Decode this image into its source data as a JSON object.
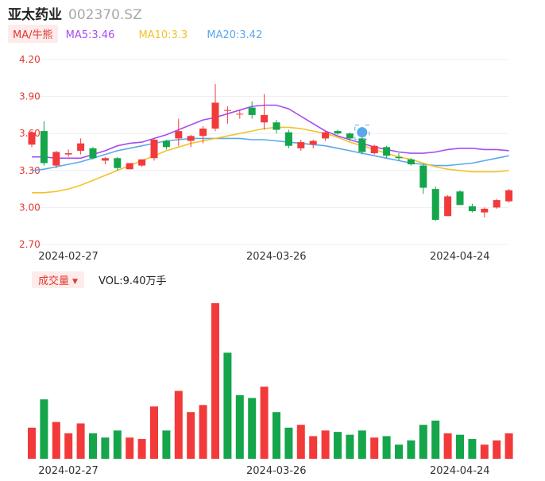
{
  "header": {
    "stock_name": "亚太药业",
    "stock_code": "002370.SZ",
    "ma_label": "MA/牛熊",
    "ma5": "MA5:3.46",
    "ma10": "MA10:3.3",
    "ma20": "MA20:3.42"
  },
  "volume_panel": {
    "label": "成交量",
    "vol_text": "VOL:9.40万手"
  },
  "colors": {
    "up": "#f23a3a",
    "down": "#15a54a",
    "ma5": "#a64bf2",
    "ma10": "#f2c32b",
    "ma20": "#5aa8ec",
    "grid": "#eeeeee",
    "tick": "#e4392f"
  },
  "chart_data": [
    {
      "type": "candlestick",
      "y_ticks": [
        "4.20",
        "3.90",
        "3.60",
        "3.30",
        "3.00",
        "2.70"
      ],
      "ylim": [
        2.7,
        4.2
      ],
      "x_tick_labels": [
        {
          "index": 0,
          "label": "2024-02-27"
        },
        {
          "index": 17,
          "label": "2024-03-26"
        },
        {
          "index": 32,
          "label": "2024-04-24"
        }
      ],
      "candles": [
        {
          "o": 3.51,
          "c": 3.61,
          "h": 3.62,
          "l": 3.49
        },
        {
          "o": 3.62,
          "c": 3.36,
          "h": 3.7,
          "l": 3.34
        },
        {
          "o": 3.34,
          "c": 3.45,
          "h": 3.46,
          "l": 3.32
        },
        {
          "o": 3.43,
          "c": 3.44,
          "h": 3.47,
          "l": 3.41
        },
        {
          "o": 3.46,
          "c": 3.52,
          "h": 3.56,
          "l": 3.43
        },
        {
          "o": 3.48,
          "c": 3.4,
          "h": 3.49,
          "l": 3.39
        },
        {
          "o": 3.38,
          "c": 3.4,
          "h": 3.41,
          "l": 3.35
        },
        {
          "o": 3.4,
          "c": 3.32,
          "h": 3.41,
          "l": 3.3
        },
        {
          "o": 3.31,
          "c": 3.36,
          "h": 3.36,
          "l": 3.31
        },
        {
          "o": 3.34,
          "c": 3.39,
          "h": 3.39,
          "l": 3.33
        },
        {
          "o": 3.4,
          "c": 3.55,
          "h": 3.56,
          "l": 3.38
        },
        {
          "o": 3.54,
          "c": 3.49,
          "h": 3.55,
          "l": 3.47
        },
        {
          "o": 3.56,
          "c": 3.62,
          "h": 3.72,
          "l": 3.5
        },
        {
          "o": 3.54,
          "c": 3.58,
          "h": 3.59,
          "l": 3.49
        },
        {
          "o": 3.58,
          "c": 3.64,
          "h": 3.66,
          "l": 3.52
        },
        {
          "o": 3.64,
          "c": 3.85,
          "h": 4.0,
          "l": 3.62
        },
        {
          "o": 3.79,
          "c": 3.79,
          "h": 3.82,
          "l": 3.68
        },
        {
          "o": 3.76,
          "c": 3.76,
          "h": 3.79,
          "l": 3.72
        },
        {
          "o": 3.81,
          "c": 3.75,
          "h": 3.86,
          "l": 3.72
        },
        {
          "o": 3.69,
          "c": 3.75,
          "h": 3.92,
          "l": 3.63
        },
        {
          "o": 3.69,
          "c": 3.63,
          "h": 3.71,
          "l": 3.6
        },
        {
          "o": 3.61,
          "c": 3.5,
          "h": 3.63,
          "l": 3.48
        },
        {
          "o": 3.48,
          "c": 3.53,
          "h": 3.55,
          "l": 3.46
        },
        {
          "o": 3.51,
          "c": 3.54,
          "h": 3.55,
          "l": 3.48
        },
        {
          "o": 3.56,
          "c": 3.61,
          "h": 3.62,
          "l": 3.54
        },
        {
          "o": 3.62,
          "c": 3.6,
          "h": 3.63,
          "l": 3.59
        },
        {
          "o": 3.6,
          "c": 3.56,
          "h": 3.61,
          "l": 3.54
        },
        {
          "o": 3.56,
          "c": 3.45,
          "h": 3.58,
          "l": 3.43
        },
        {
          "o": 3.44,
          "c": 3.5,
          "h": 3.51,
          "l": 3.43
        },
        {
          "o": 3.49,
          "c": 3.42,
          "h": 3.5,
          "l": 3.4
        },
        {
          "o": 3.41,
          "c": 3.4,
          "h": 3.44,
          "l": 3.38
        },
        {
          "o": 3.39,
          "c": 3.35,
          "h": 3.4,
          "l": 3.34
        },
        {
          "o": 3.34,
          "c": 3.16,
          "h": 3.35,
          "l": 3.11
        },
        {
          "o": 3.15,
          "c": 2.9,
          "h": 3.17,
          "l": 2.89
        },
        {
          "o": 2.93,
          "c": 3.09,
          "h": 3.1,
          "l": 2.93
        },
        {
          "o": 3.13,
          "c": 3.02,
          "h": 3.14,
          "l": 3.02
        },
        {
          "o": 3.01,
          "c": 2.97,
          "h": 3.03,
          "l": 2.96
        },
        {
          "o": 2.96,
          "c": 2.99,
          "h": 3.0,
          "l": 2.92
        },
        {
          "o": 3.0,
          "c": 3.06,
          "h": 3.07,
          "l": 2.99
        },
        {
          "o": 3.05,
          "c": 3.14,
          "h": 3.15,
          "l": 3.04
        }
      ],
      "ma5": [
        3.41,
        3.41,
        3.4,
        3.4,
        3.4,
        3.43,
        3.46,
        3.5,
        3.52,
        3.53,
        3.56,
        3.59,
        3.63,
        3.67,
        3.71,
        3.73,
        3.76,
        3.79,
        3.82,
        3.83,
        3.83,
        3.8,
        3.74,
        3.68,
        3.62,
        3.58,
        3.55,
        3.52,
        3.49,
        3.47,
        3.45,
        3.44,
        3.44,
        3.45,
        3.47,
        3.48,
        3.48,
        3.47,
        3.47,
        3.46
      ],
      "ma10": [
        3.12,
        3.12,
        3.13,
        3.15,
        3.18,
        3.22,
        3.26,
        3.3,
        3.34,
        3.38,
        3.42,
        3.46,
        3.49,
        3.52,
        3.54,
        3.56,
        3.58,
        3.6,
        3.62,
        3.64,
        3.65,
        3.65,
        3.64,
        3.62,
        3.6,
        3.57,
        3.53,
        3.5,
        3.47,
        3.44,
        3.41,
        3.39,
        3.36,
        3.33,
        3.31,
        3.3,
        3.29,
        3.29,
        3.29,
        3.3
      ],
      "ma20": [
        3.3,
        3.31,
        3.33,
        3.35,
        3.37,
        3.4,
        3.43,
        3.46,
        3.48,
        3.5,
        3.52,
        3.54,
        3.55,
        3.56,
        3.56,
        3.56,
        3.56,
        3.56,
        3.55,
        3.55,
        3.54,
        3.53,
        3.52,
        3.51,
        3.5,
        3.48,
        3.46,
        3.44,
        3.42,
        3.4,
        3.38,
        3.36,
        3.35,
        3.34,
        3.34,
        3.35,
        3.36,
        3.38,
        3.4,
        3.42
      ]
    },
    {
      "type": "bar",
      "title": "成交量",
      "values": [
        2.2,
        4.2,
        2.6,
        1.8,
        2.5,
        1.8,
        1.5,
        2.0,
        1.5,
        1.4,
        3.7,
        2.0,
        4.8,
        3.3,
        3.8,
        11.0,
        7.5,
        4.5,
        4.3,
        5.1,
        3.3,
        2.2,
        2.4,
        1.6,
        2.0,
        1.9,
        1.7,
        2.0,
        1.5,
        1.6,
        1.0,
        1.3,
        2.4,
        2.7,
        1.8,
        1.7,
        1.4,
        1.0,
        1.3,
        1.8
      ],
      "up_flags": [
        true,
        false,
        true,
        true,
        true,
        false,
        false,
        false,
        true,
        true,
        true,
        false,
        true,
        true,
        true,
        true,
        false,
        false,
        false,
        true,
        false,
        false,
        true,
        true,
        true,
        false,
        false,
        false,
        true,
        false,
        false,
        false,
        false,
        false,
        true,
        false,
        false,
        true,
        true,
        true
      ]
    }
  ]
}
